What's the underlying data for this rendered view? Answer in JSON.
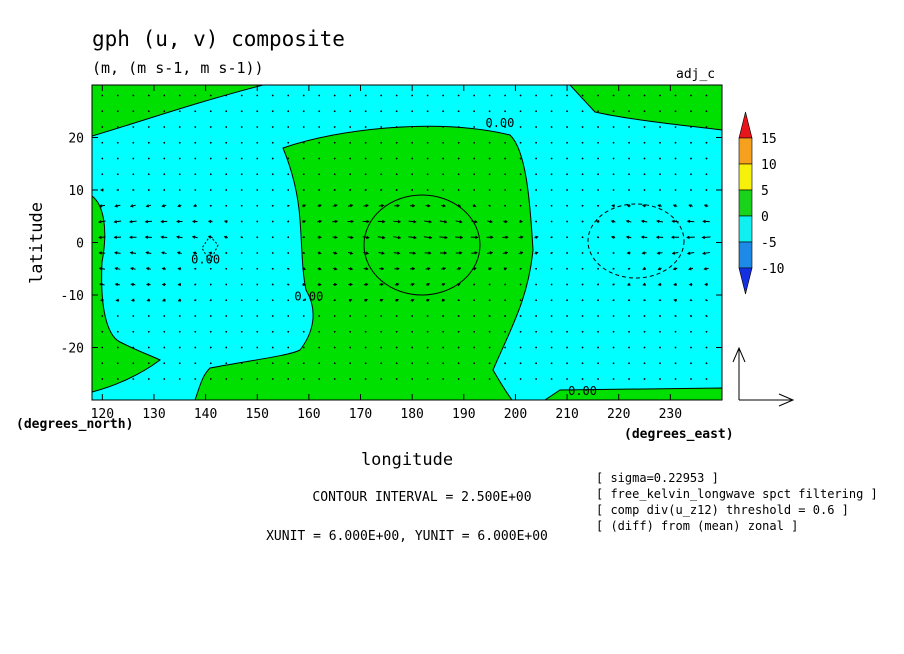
{
  "chart_data": {
    "type": "contour",
    "title": "gph (u, v) composite",
    "subtitle": "(m, (m s-1, m s-1))",
    "tag": "adj_c",
    "xlabel": "longitude",
    "ylabel": "latitude",
    "x_unit": "(degrees_east)",
    "y_unit": "(degrees_north)",
    "xlim": [
      118,
      240
    ],
    "ylim": [
      -30,
      30
    ],
    "x_ticks": [
      {
        "value": 120,
        "label": "120"
      },
      {
        "value": 130,
        "label": "130"
      },
      {
        "value": 140,
        "label": "140"
      },
      {
        "value": 150,
        "label": "150"
      },
      {
        "value": 160,
        "label": "160"
      },
      {
        "value": 170,
        "label": "170"
      },
      {
        "value": 180,
        "label": "180"
      },
      {
        "value": 190,
        "label": "190"
      },
      {
        "value": 200,
        "label": "200"
      },
      {
        "value": 210,
        "label": "210"
      },
      {
        "value": 220,
        "label": "220"
      },
      {
        "value": 230,
        "label": "230"
      }
    ],
    "y_ticks": [
      {
        "value": 20,
        "label": "20"
      },
      {
        "value": 10,
        "label": "10"
      },
      {
        "value": 0,
        "label": "0"
      },
      {
        "value": -10,
        "label": "-10"
      },
      {
        "value": -20,
        "label": "-20"
      }
    ],
    "contour_labels": [
      {
        "text": "0.00",
        "lon": 197,
        "lat": 22
      },
      {
        "text": "0.00",
        "lon": 140,
        "lat": -4
      },
      {
        "text": "0.00",
        "lon": 160,
        "lat": -11
      },
      {
        "text": "0.00",
        "lon": 213,
        "lat": -29
      }
    ],
    "colorbar": {
      "labels": [
        "15",
        "10",
        "5",
        "0",
        "-5",
        "-10"
      ],
      "colors": [
        "#e8141b",
        "#f7a01d",
        "#f7f00b",
        "#19d21a",
        "#10f0f0",
        "#1e8ae8",
        "#1430e0"
      ]
    },
    "fill_colors": {
      "positive": "#00e000",
      "negative": "#00ffff"
    },
    "contour_interval_text": "CONTOUR INTERVAL = 2.500E+00",
    "vector_unit_text": "XUNIT = 6.000E+00, YUNIT = 6.000E+00",
    "notes": [
      "[ sigma=0.22953 ]",
      "[ free_kelvin_longwave spct filtering ]",
      "[ comp div(u_z12) threshold = 0.6 ]",
      "[ (diff) from (mean) zonal ]"
    ]
  }
}
